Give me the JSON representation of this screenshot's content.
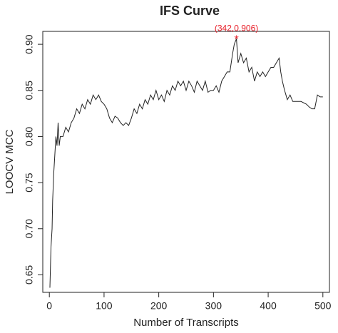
{
  "chart_data": {
    "type": "line",
    "title": "IFS Curve",
    "xlabel": "Number of Transcripts",
    "ylabel": "LOOCV MCC",
    "x": [
      1,
      3,
      5,
      6,
      8,
      10,
      12,
      14,
      16,
      18,
      20,
      25,
      30,
      35,
      40,
      45,
      50,
      55,
      60,
      65,
      70,
      75,
      80,
      85,
      90,
      95,
      100,
      105,
      110,
      115,
      120,
      125,
      130,
      135,
      140,
      145,
      150,
      155,
      160,
      165,
      170,
      175,
      180,
      185,
      190,
      195,
      200,
      205,
      210,
      215,
      220,
      225,
      230,
      235,
      240,
      245,
      250,
      255,
      260,
      265,
      270,
      275,
      280,
      285,
      290,
      295,
      300,
      305,
      310,
      315,
      320,
      325,
      330,
      335,
      338,
      342,
      345,
      350,
      355,
      360,
      365,
      370,
      375,
      380,
      385,
      390,
      395,
      400,
      405,
      410,
      415,
      420,
      423,
      426,
      430,
      435,
      440,
      445,
      450,
      460,
      470,
      475,
      480,
      485,
      490,
      495,
      500
    ],
    "series": [
      {
        "name": "MCC",
        "color": "#222222",
        "values": [
          0.636,
          0.68,
          0.7,
          0.73,
          0.76,
          0.78,
          0.8,
          0.79,
          0.815,
          0.79,
          0.8,
          0.8,
          0.81,
          0.805,
          0.815,
          0.82,
          0.83,
          0.825,
          0.835,
          0.83,
          0.84,
          0.835,
          0.845,
          0.84,
          0.845,
          0.838,
          0.835,
          0.83,
          0.82,
          0.815,
          0.822,
          0.82,
          0.815,
          0.812,
          0.815,
          0.812,
          0.82,
          0.83,
          0.825,
          0.835,
          0.83,
          0.84,
          0.835,
          0.845,
          0.84,
          0.85,
          0.84,
          0.845,
          0.838,
          0.85,
          0.845,
          0.855,
          0.85,
          0.86,
          0.855,
          0.86,
          0.85,
          0.86,
          0.855,
          0.848,
          0.86,
          0.855,
          0.85,
          0.86,
          0.848,
          0.85,
          0.85,
          0.855,
          0.848,
          0.86,
          0.865,
          0.87,
          0.87,
          0.89,
          0.9,
          0.906,
          0.88,
          0.89,
          0.88,
          0.885,
          0.87,
          0.875,
          0.86,
          0.87,
          0.865,
          0.87,
          0.865,
          0.87,
          0.875,
          0.875,
          0.88,
          0.885,
          0.87,
          0.86,
          0.85,
          0.84,
          0.845,
          0.838,
          0.838,
          0.838,
          0.835,
          0.832,
          0.83,
          0.83,
          0.845,
          0.843,
          0.843
        ]
      }
    ],
    "xlim": [
      -12,
      512
    ],
    "xticks": [
      0,
      100,
      200,
      300,
      400,
      500
    ],
    "ylim": [
      0.631,
      0.914
    ],
    "yticks": [
      0.65,
      {
        "value": 0.7,
        "label": "0.70"
      },
      0.75,
      {
        "value": 0.8,
        "label": "0.80"
      },
      0.85,
      {
        "value": 0.9,
        "label": "0.90"
      }
    ],
    "annotations": [
      {
        "x": 342,
        "y": 0.906,
        "label": "(342,0.906)",
        "color": "#e8202a"
      }
    ]
  }
}
